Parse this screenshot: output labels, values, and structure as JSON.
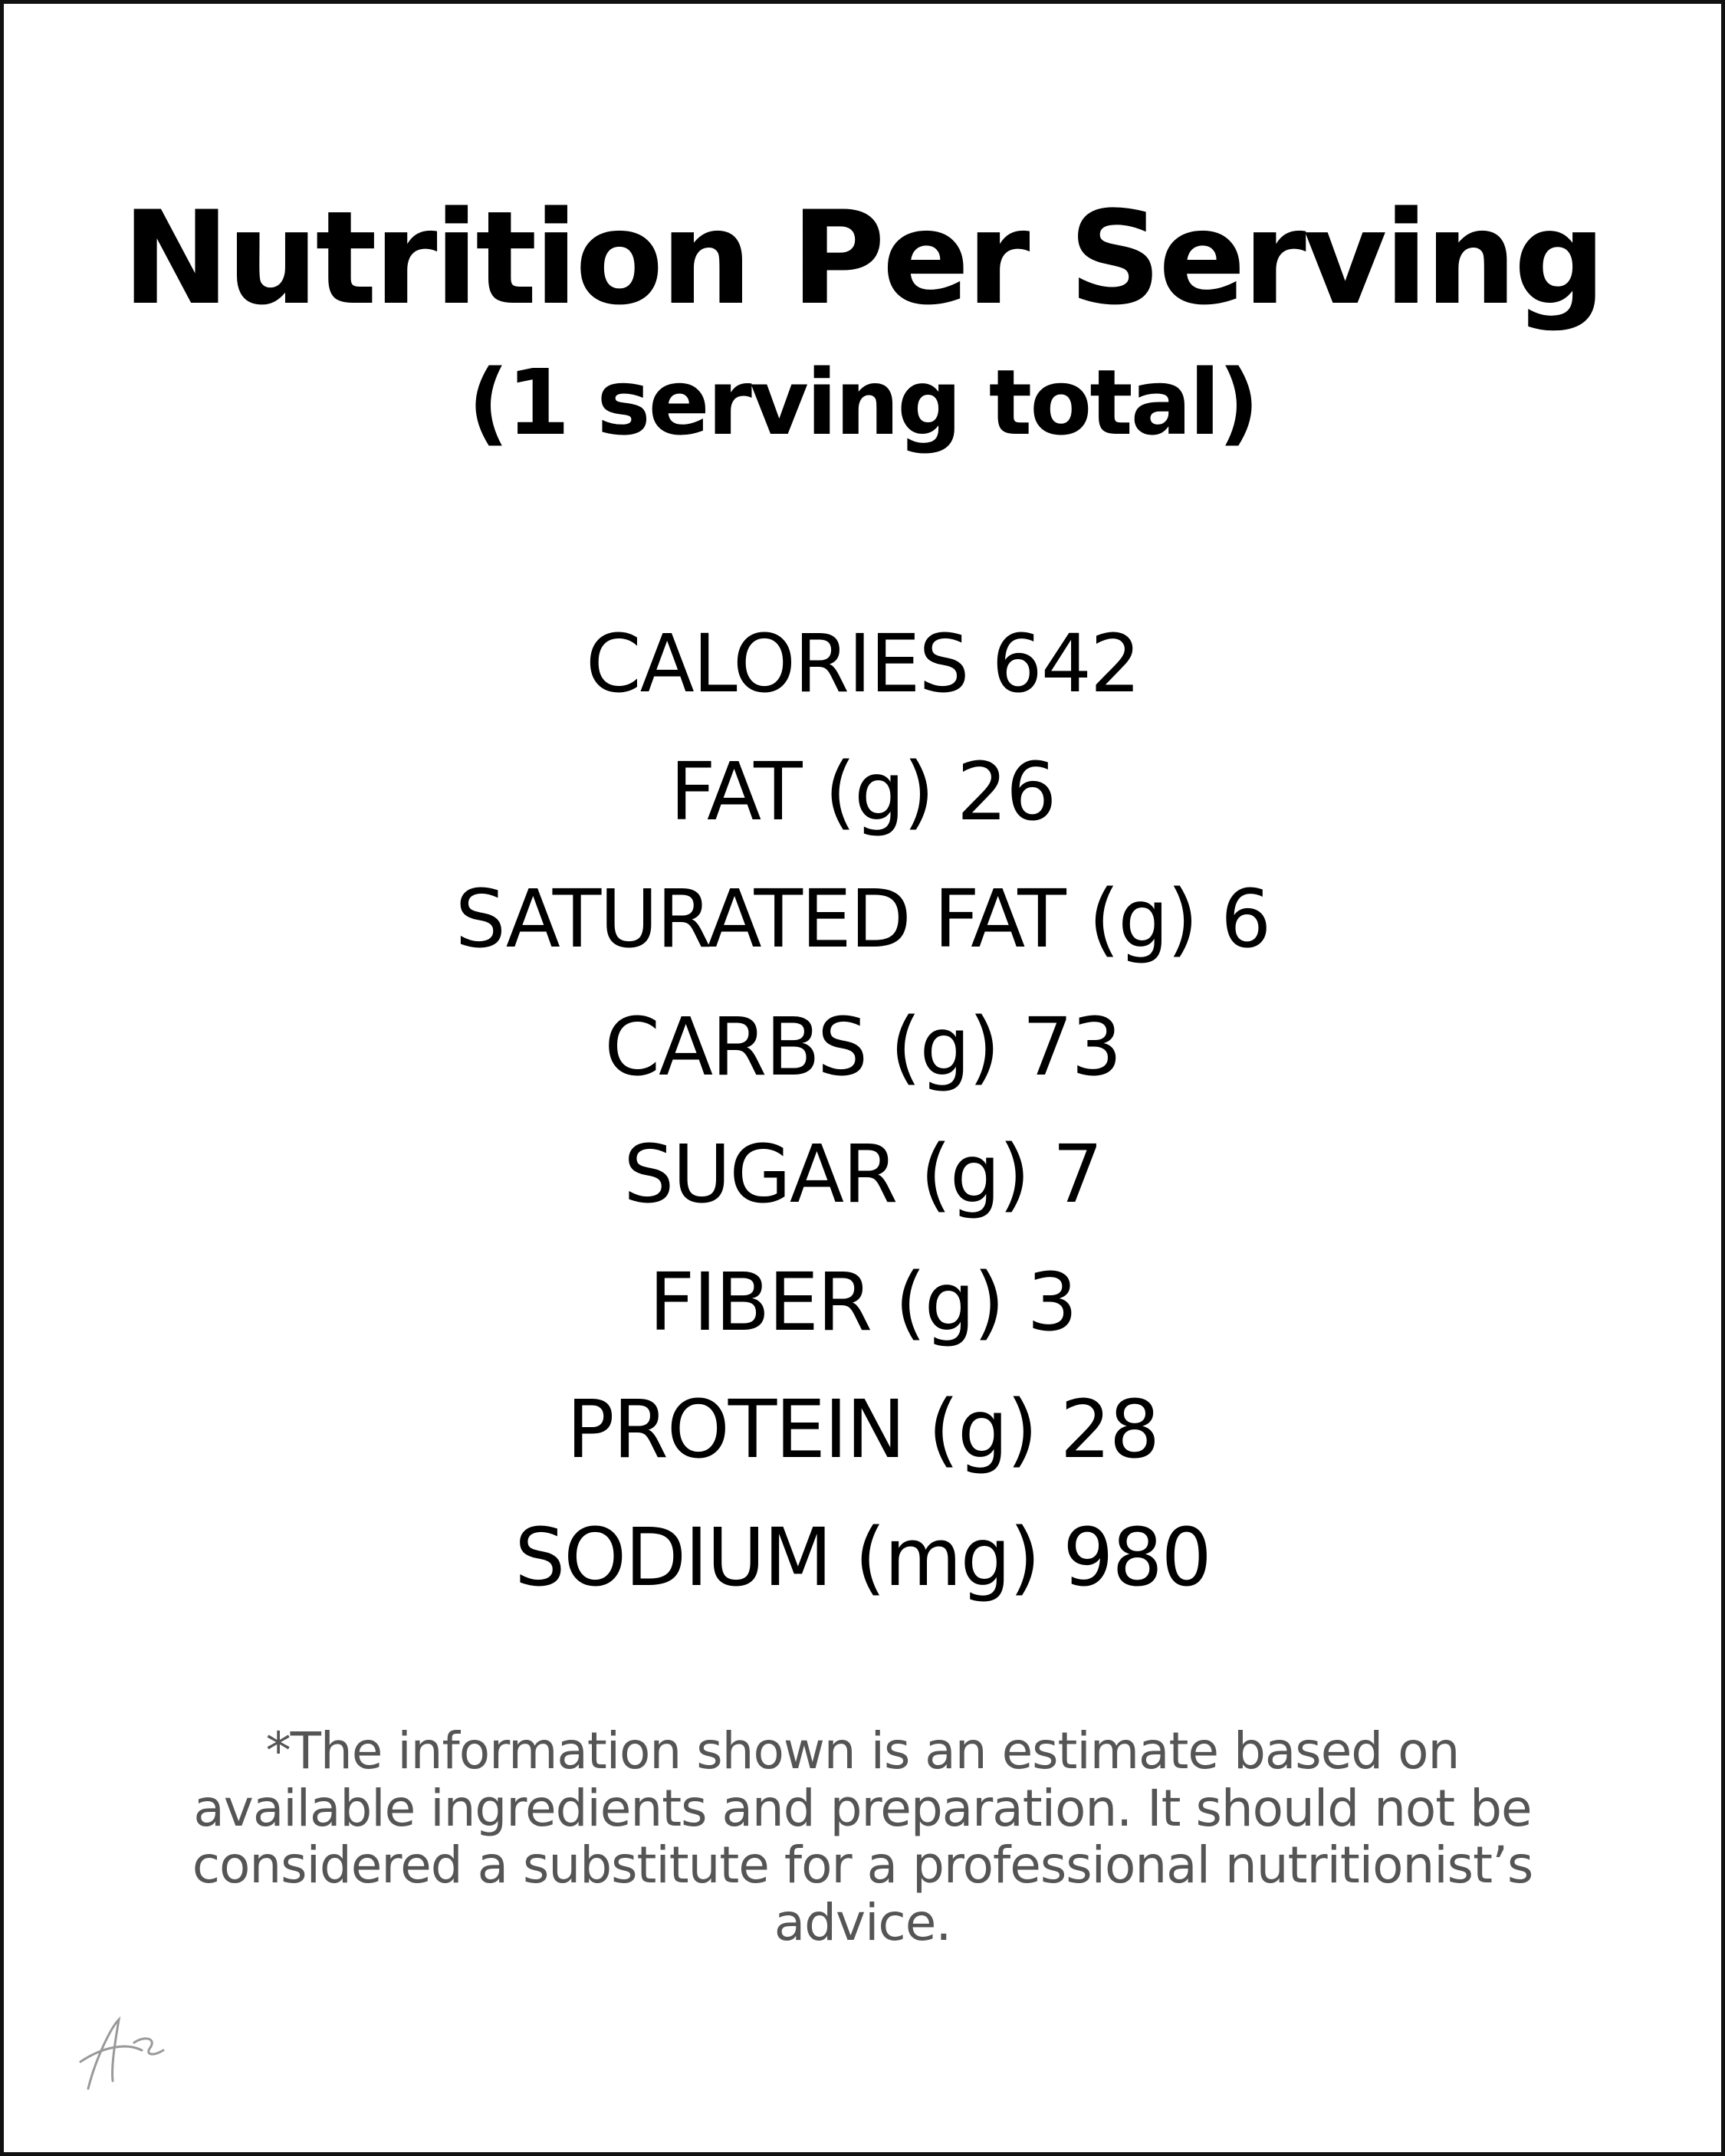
{
  "header": {
    "title": "Nutrition Per Serving",
    "subtitle": "(1 serving total)"
  },
  "nutrients": [
    {
      "label": "CALORIES",
      "value": 642
    },
    {
      "label": "FAT (g)",
      "value": 26
    },
    {
      "label": "SATURATED FAT (g)",
      "value": 6
    },
    {
      "label": "CARBS (g)",
      "value": 73
    },
    {
      "label": "SUGAR (g)",
      "value": 7
    },
    {
      "label": "FIBER (g)",
      "value": 3
    },
    {
      "label": "PROTEIN (g)",
      "value": 28
    },
    {
      "label": "SODIUM (mg)",
      "value": 980
    }
  ],
  "disclaimer": [
    "*The information shown is an estimate based on",
    "available ingredients and preparation. It should not be",
    "considered a substitute for a professional nutritionist’s",
    "advice."
  ]
}
